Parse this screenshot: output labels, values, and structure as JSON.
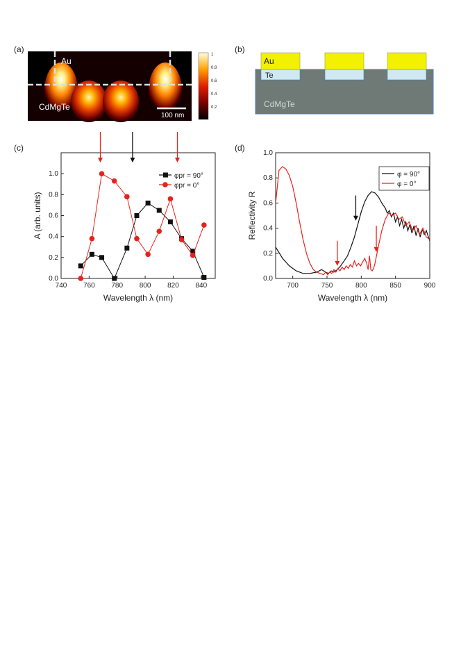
{
  "panels": {
    "a": {
      "label": "(a)",
      "au_label": "Au",
      "substrate_label": "CdMgTe",
      "scale_label": "100 nm",
      "colorbar_ticks": [
        "1",
        "0.8",
        "0.6",
        "0.4",
        "0.2"
      ]
    },
    "b": {
      "label": "(b)",
      "au_label": "Au",
      "te_label": "Te",
      "substrate_label": "CdMgTe",
      "colors": {
        "au": "#f2f200",
        "te": "#cfe8f2",
        "substrate": "#6f7a76",
        "border": "#4a7cc0"
      }
    },
    "c": {
      "label": "(c)"
    },
    "d": {
      "label": "(d)"
    }
  },
  "chart_data": [
    {
      "panel": "c",
      "type": "line",
      "xlabel": "Wavelength λ (nm)",
      "ylabel": "A (arb. units)",
      "xlim": [
        740,
        850
      ],
      "ylim": [
        0,
        1.2
      ],
      "xticks": [
        740,
        760,
        780,
        800,
        820,
        840
      ],
      "yticks": [
        0.0,
        0.2,
        0.4,
        0.6,
        0.8,
        1.0
      ],
      "legend_position": "top-right",
      "series": [
        {
          "name": "φpr = 90°",
          "color": "#111111",
          "marker": "square",
          "x": [
            754,
            762,
            769,
            778,
            787,
            794,
            802,
            810,
            818,
            826,
            834,
            842
          ],
          "y": [
            0.12,
            0.23,
            0.2,
            0.0,
            0.29,
            0.6,
            0.72,
            0.65,
            0.54,
            0.38,
            0.26,
            0.01
          ]
        },
        {
          "name": "φpr = 0°",
          "color": "#e8221b",
          "marker": "circle",
          "x": [
            754,
            762,
            769,
            778,
            787,
            794,
            802,
            810,
            818,
            826,
            834,
            842
          ],
          "y": [
            0.0,
            0.38,
            1.0,
            0.93,
            0.78,
            0.38,
            0.23,
            0.45,
            0.76,
            0.37,
            0.22,
            0.51
          ]
        }
      ],
      "arrows": [
        {
          "x": 768,
          "color": "#e8221b"
        },
        {
          "x": 791,
          "color": "#111111"
        },
        {
          "x": 823,
          "color": "#e8221b"
        }
      ]
    },
    {
      "panel": "d",
      "type": "line",
      "xlabel": "Wavelength λ (nm)",
      "ylabel": "Reflectivity R",
      "xlim": [
        675,
        900
      ],
      "ylim": [
        0,
        1.0
      ],
      "xticks": [
        700,
        750,
        800,
        850,
        900
      ],
      "yticks": [
        0.0,
        0.2,
        0.4,
        0.6,
        0.8,
        1.0
      ],
      "legend_position": "top-right",
      "series": [
        {
          "name": "φ = 90°",
          "color": "#111111",
          "x": [
            675,
            685,
            695,
            705,
            715,
            725,
            735,
            742,
            748,
            752,
            756,
            760,
            765,
            770,
            775,
            780,
            785,
            790,
            795,
            800,
            805,
            810,
            815,
            820,
            825,
            830,
            835,
            838,
            841,
            844,
            847,
            850,
            853,
            856,
            859,
            862,
            865,
            868,
            871,
            874,
            877,
            880,
            883,
            886,
            889,
            892,
            895,
            898,
            900
          ],
          "y": [
            0.25,
            0.16,
            0.1,
            0.06,
            0.04,
            0.04,
            0.05,
            0.07,
            0.05,
            0.04,
            0.06,
            0.05,
            0.07,
            0.1,
            0.14,
            0.18,
            0.25,
            0.33,
            0.43,
            0.53,
            0.61,
            0.66,
            0.69,
            0.68,
            0.65,
            0.6,
            0.56,
            0.52,
            0.54,
            0.49,
            0.52,
            0.45,
            0.49,
            0.42,
            0.47,
            0.4,
            0.45,
            0.38,
            0.43,
            0.36,
            0.42,
            0.34,
            0.4,
            0.33,
            0.39,
            0.35,
            0.38,
            0.33,
            0.3
          ]
        },
        {
          "name": "φ = 0°",
          "color": "#e8221b",
          "x": [
            675,
            680,
            685,
            690,
            695,
            700,
            705,
            710,
            715,
            720,
            725,
            730,
            735,
            740,
            745,
            748,
            751,
            754,
            757,
            760,
            763,
            766,
            769,
            772,
            775,
            778,
            781,
            784,
            787,
            790,
            793,
            796,
            799,
            802,
            805,
            808,
            810,
            812,
            814,
            816,
            818,
            820,
            823,
            826,
            830,
            835,
            840,
            845,
            850,
            855,
            860,
            865,
            870,
            875,
            880,
            885,
            890,
            895,
            900
          ],
          "y": [
            0.6,
            0.86,
            0.89,
            0.87,
            0.82,
            0.73,
            0.6,
            0.45,
            0.31,
            0.2,
            0.12,
            0.07,
            0.05,
            0.04,
            0.03,
            0.05,
            0.03,
            0.05,
            0.04,
            0.07,
            0.05,
            0.08,
            0.06,
            0.09,
            0.07,
            0.1,
            0.08,
            0.11,
            0.09,
            0.14,
            0.1,
            0.12,
            0.1,
            0.13,
            0.16,
            0.12,
            0.07,
            0.18,
            0.07,
            0.06,
            0.08,
            0.12,
            0.2,
            0.28,
            0.38,
            0.47,
            0.52,
            0.5,
            0.52,
            0.47,
            0.49,
            0.42,
            0.45,
            0.38,
            0.42,
            0.35,
            0.4,
            0.33,
            0.31
          ]
        }
      ],
      "arrows": [
        {
          "x": 765,
          "color": "#e8221b"
        },
        {
          "x": 792,
          "color": "#111111"
        },
        {
          "x": 822,
          "color": "#e8221b"
        }
      ]
    }
  ]
}
